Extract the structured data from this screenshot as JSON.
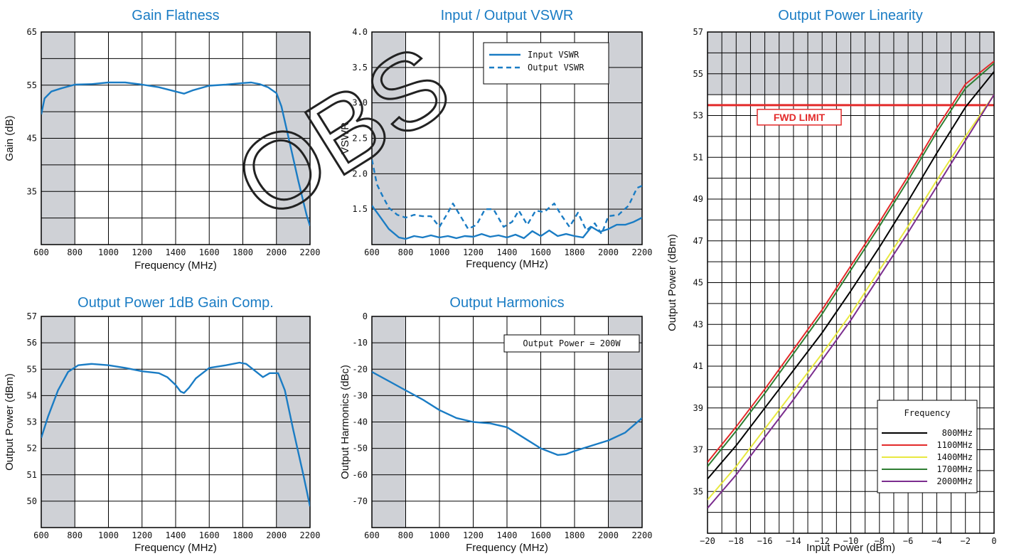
{
  "watermark": "OBS",
  "chart_data": [
    {
      "id": "gain",
      "type": "line",
      "title": "Gain Flatness",
      "xlabel": "Frequency (MHz)",
      "ylabel": "Gain (dB)",
      "xlim": [
        600,
        2200
      ],
      "ylim": [
        25,
        65
      ],
      "xticks": [
        600,
        800,
        1000,
        1200,
        1400,
        1600,
        1800,
        2000,
        2200
      ],
      "yticks": [
        35,
        45,
        55,
        65
      ],
      "grid": true,
      "shaded_bands": [
        [
          600,
          800
        ],
        [
          2000,
          2200
        ]
      ],
      "series": [
        {
          "color": "#1a7cc4",
          "style": "solid",
          "points": [
            [
              600,
              49.5
            ],
            [
              620,
              52.5
            ],
            [
              660,
              53.8
            ],
            [
              720,
              54.4
            ],
            [
              800,
              55.1
            ],
            [
              900,
              55.2
            ],
            [
              1000,
              55.5
            ],
            [
              1100,
              55.5
            ],
            [
              1200,
              55.1
            ],
            [
              1300,
              54.6
            ],
            [
              1400,
              53.8
            ],
            [
              1450,
              53.4
            ],
            [
              1500,
              54.0
            ],
            [
              1600,
              54.9
            ],
            [
              1700,
              55.1
            ],
            [
              1800,
              55.4
            ],
            [
              1850,
              55.5
            ],
            [
              1900,
              55.2
            ],
            [
              1950,
              54.6
            ],
            [
              2000,
              53.5
            ],
            [
              2030,
              51
            ],
            [
              2080,
              44
            ],
            [
              2130,
              37
            ],
            [
              2180,
              30.5
            ],
            [
              2200,
              28.5
            ]
          ]
        }
      ]
    },
    {
      "id": "vswr",
      "type": "line",
      "title": "Input / Output VSWR",
      "xlabel": "Frequency (MHz)",
      "ylabel": "VSWR",
      "xlim": [
        600,
        2200
      ],
      "ylim": [
        1.0,
        4.0
      ],
      "xticks": [
        600,
        800,
        1000,
        1200,
        1400,
        1600,
        1800,
        2000,
        2200
      ],
      "yticks": [
        1.5,
        2.0,
        2.5,
        3.0,
        3.5,
        4.0
      ],
      "ytick_labels": [
        "1.5",
        "2.0",
        "2.5",
        "3.0",
        "3.5",
        "4.0"
      ],
      "grid": true,
      "shaded_bands": [
        [
          600,
          800
        ],
        [
          2000,
          2200
        ]
      ],
      "legend": {
        "position": "top-right",
        "entries": [
          "Input VSWR",
          "Output VSWR"
        ]
      },
      "series": [
        {
          "name": "Input VSWR",
          "color": "#1a7cc4",
          "style": "solid",
          "points": [
            [
              600,
              1.55
            ],
            [
              640,
              1.42
            ],
            [
              700,
              1.22
            ],
            [
              760,
              1.1
            ],
            [
              800,
              1.08
            ],
            [
              850,
              1.12
            ],
            [
              900,
              1.1
            ],
            [
              950,
              1.13
            ],
            [
              1000,
              1.1
            ],
            [
              1050,
              1.12
            ],
            [
              1100,
              1.09
            ],
            [
              1150,
              1.12
            ],
            [
              1200,
              1.11
            ],
            [
              1250,
              1.15
            ],
            [
              1300,
              1.11
            ],
            [
              1350,
              1.13
            ],
            [
              1400,
              1.1
            ],
            [
              1450,
              1.14
            ],
            [
              1500,
              1.09
            ],
            [
              1550,
              1.19
            ],
            [
              1600,
              1.12
            ],
            [
              1650,
              1.2
            ],
            [
              1700,
              1.12
            ],
            [
              1750,
              1.15
            ],
            [
              1800,
              1.12
            ],
            [
              1850,
              1.1
            ],
            [
              1900,
              1.25
            ],
            [
              1950,
              1.18
            ],
            [
              2000,
              1.22
            ],
            [
              2050,
              1.28
            ],
            [
              2100,
              1.28
            ],
            [
              2150,
              1.32
            ],
            [
              2200,
              1.38
            ]
          ]
        },
        {
          "name": "Output VSWR",
          "color": "#1a7cc4",
          "style": "dashed",
          "points": [
            [
              600,
              2.2
            ],
            [
              630,
              1.85
            ],
            [
              660,
              1.7
            ],
            [
              700,
              1.52
            ],
            [
              750,
              1.42
            ],
            [
              800,
              1.38
            ],
            [
              850,
              1.42
            ],
            [
              900,
              1.4
            ],
            [
              950,
              1.4
            ],
            [
              1000,
              1.25
            ],
            [
              1050,
              1.45
            ],
            [
              1080,
              1.58
            ],
            [
              1120,
              1.42
            ],
            [
              1170,
              1.22
            ],
            [
              1220,
              1.28
            ],
            [
              1270,
              1.5
            ],
            [
              1320,
              1.5
            ],
            [
              1380,
              1.25
            ],
            [
              1430,
              1.32
            ],
            [
              1470,
              1.48
            ],
            [
              1520,
              1.28
            ],
            [
              1570,
              1.48
            ],
            [
              1620,
              1.46
            ],
            [
              1680,
              1.58
            ],
            [
              1720,
              1.42
            ],
            [
              1770,
              1.25
            ],
            [
              1820,
              1.45
            ],
            [
              1870,
              1.2
            ],
            [
              1920,
              1.3
            ],
            [
              1960,
              1.15
            ],
            [
              2000,
              1.4
            ],
            [
              2060,
              1.42
            ],
            [
              2120,
              1.55
            ],
            [
              2170,
              1.8
            ],
            [
              2200,
              1.83
            ]
          ]
        }
      ]
    },
    {
      "id": "p1db",
      "type": "line",
      "title": "Output Power 1dB Gain Comp.",
      "xlabel": "Frequency (MHz)",
      "ylabel": "Output Power (dBm)",
      "xlim": [
        600,
        2200
      ],
      "ylim": [
        49,
        57
      ],
      "xticks": [
        600,
        800,
        1000,
        1200,
        1400,
        1600,
        1800,
        2000,
        2200
      ],
      "yticks": [
        50,
        51,
        52,
        53,
        54,
        55,
        56,
        57
      ],
      "grid": true,
      "shaded_bands": [
        [
          600,
          800
        ],
        [
          2000,
          2200
        ]
      ],
      "series": [
        {
          "color": "#1a7cc4",
          "style": "solid",
          "points": [
            [
              600,
              52.4
            ],
            [
              640,
              53.2
            ],
            [
              700,
              54.2
            ],
            [
              760,
              54.9
            ],
            [
              820,
              55.15
            ],
            [
              900,
              55.2
            ],
            [
              1000,
              55.15
            ],
            [
              1100,
              55.05
            ],
            [
              1200,
              54.92
            ],
            [
              1300,
              54.85
            ],
            [
              1350,
              54.7
            ],
            [
              1400,
              54.4
            ],
            [
              1430,
              54.15
            ],
            [
              1450,
              54.1
            ],
            [
              1480,
              54.3
            ],
            [
              1520,
              54.65
            ],
            [
              1600,
              55.05
            ],
            [
              1700,
              55.15
            ],
            [
              1780,
              55.25
            ],
            [
              1820,
              55.2
            ],
            [
              1870,
              54.95
            ],
            [
              1920,
              54.7
            ],
            [
              1960,
              54.85
            ],
            [
              2010,
              54.85
            ],
            [
              2050,
              54.2
            ],
            [
              2100,
              52.7
            ],
            [
              2160,
              51
            ],
            [
              2200,
              49.8
            ]
          ]
        }
      ]
    },
    {
      "id": "harm",
      "type": "line",
      "title": "Output Harmonics",
      "xlabel": "Frequency (MHz)",
      "ylabel": "Output Harmonics (dBc)",
      "xlim": [
        600,
        2200
      ],
      "ylim": [
        -80,
        0
      ],
      "xticks": [
        600,
        800,
        1000,
        1200,
        1400,
        1600,
        1800,
        2000,
        2200
      ],
      "yticks": [
        0,
        -10,
        -20,
        -30,
        -40,
        -50,
        -60,
        -70
      ],
      "grid": true,
      "shaded_bands": [
        [
          600,
          800
        ],
        [
          2000,
          2200
        ]
      ],
      "annotation": "Output Power = 200W",
      "series": [
        {
          "color": "#1a7cc4",
          "style": "solid",
          "points": [
            [
              600,
              -21
            ],
            [
              700,
              -24.5
            ],
            [
              800,
              -28
            ],
            [
              900,
              -31.5
            ],
            [
              1000,
              -35.5
            ],
            [
              1100,
              -38.5
            ],
            [
              1200,
              -40
            ],
            [
              1300,
              -40.5
            ],
            [
              1400,
              -42
            ],
            [
              1500,
              -46
            ],
            [
              1600,
              -50
            ],
            [
              1700,
              -52.5
            ],
            [
              1750,
              -52.2
            ],
            [
              1800,
              -51
            ],
            [
              1900,
              -49
            ],
            [
              2000,
              -47
            ],
            [
              2100,
              -44
            ],
            [
              2200,
              -38.5
            ]
          ]
        }
      ]
    },
    {
      "id": "linearity",
      "type": "line",
      "title": "Output Power Linearity",
      "xlabel": "Input Power (dBm)",
      "ylabel": "Output Power (dBm)",
      "xlim": [
        -20,
        0
      ],
      "ylim": [
        33,
        57
      ],
      "xticks": [
        -20,
        -18,
        -16,
        -14,
        -12,
        -10,
        -8,
        -6,
        -4,
        -2,
        0
      ],
      "xtick_labels": [
        "−20",
        "−18",
        "−16",
        "−14",
        "−12",
        "−10",
        "−8",
        "−6",
        "−4",
        "−2",
        "0"
      ],
      "yticks": [
        35,
        37,
        39,
        41,
        43,
        45,
        47,
        49,
        51,
        53,
        55,
        57
      ],
      "grid": true,
      "shaded_y_band": [
        54,
        57
      ],
      "limit_line": {
        "y": 53.5,
        "label": "FWD LIMIT",
        "color": "#e32a2a"
      },
      "legend": {
        "position": "bottom-right",
        "title": "Frequency",
        "entries": [
          "800MHz",
          "1100MHz",
          "1400MHz",
          "1700MHz",
          "2000MHz"
        ]
      },
      "series": [
        {
          "name": "800MHz",
          "color": "#000000",
          "points": [
            [
              -20,
              35.6
            ],
            [
              -18,
              37.2
            ],
            [
              -16,
              39.0
            ],
            [
              -14,
              40.8
            ],
            [
              -12,
              42.6
            ],
            [
              -10,
              44.6
            ],
            [
              -8,
              46.7
            ],
            [
              -6,
              48.9
            ],
            [
              -4,
              51.2
            ],
            [
              -2,
              53.4
            ],
            [
              0,
              55.1
            ]
          ]
        },
        {
          "name": "1100MHz",
          "color": "#e32a2a",
          "points": [
            [
              -20,
              36.4
            ],
            [
              -18,
              38.1
            ],
            [
              -16,
              39.9
            ],
            [
              -14,
              41.8
            ],
            [
              -12,
              43.7
            ],
            [
              -10,
              45.8
            ],
            [
              -8,
              47.9
            ],
            [
              -6,
              50.1
            ],
            [
              -4,
              52.4
            ],
            [
              -2,
              54.5
            ],
            [
              0,
              55.6
            ]
          ]
        },
        {
          "name": "1400MHz",
          "color": "#e8e840",
          "points": [
            [
              -20,
              34.6
            ],
            [
              -18,
              36.2
            ],
            [
              -16,
              38.0
            ],
            [
              -14,
              39.8
            ],
            [
              -12,
              41.6
            ],
            [
              -10,
              43.5
            ],
            [
              -8,
              45.6
            ],
            [
              -6,
              47.7
            ],
            [
              -4,
              49.9
            ],
            [
              -2,
              52.0
            ],
            [
              0,
              54.0
            ]
          ]
        },
        {
          "name": "1700MHz",
          "color": "#2e7d32",
          "points": [
            [
              -20,
              36.2
            ],
            [
              -18,
              37.9
            ],
            [
              -16,
              39.7
            ],
            [
              -14,
              41.6
            ],
            [
              -12,
              43.5
            ],
            [
              -10,
              45.6
            ],
            [
              -8,
              47.7
            ],
            [
              -6,
              49.9
            ],
            [
              -4,
              52.2
            ],
            [
              -2,
              54.3
            ],
            [
              0,
              55.5
            ]
          ]
        },
        {
          "name": "2000MHz",
          "color": "#7b2d8e",
          "points": [
            [
              -20,
              34.2
            ],
            [
              -18,
              35.8
            ],
            [
              -16,
              37.6
            ],
            [
              -14,
              39.4
            ],
            [
              -12,
              41.3
            ],
            [
              -10,
              43.2
            ],
            [
              -8,
              45.3
            ],
            [
              -6,
              47.4
            ],
            [
              -4,
              49.6
            ],
            [
              -2,
              51.8
            ],
            [
              0,
              54.0
            ]
          ]
        }
      ]
    }
  ]
}
